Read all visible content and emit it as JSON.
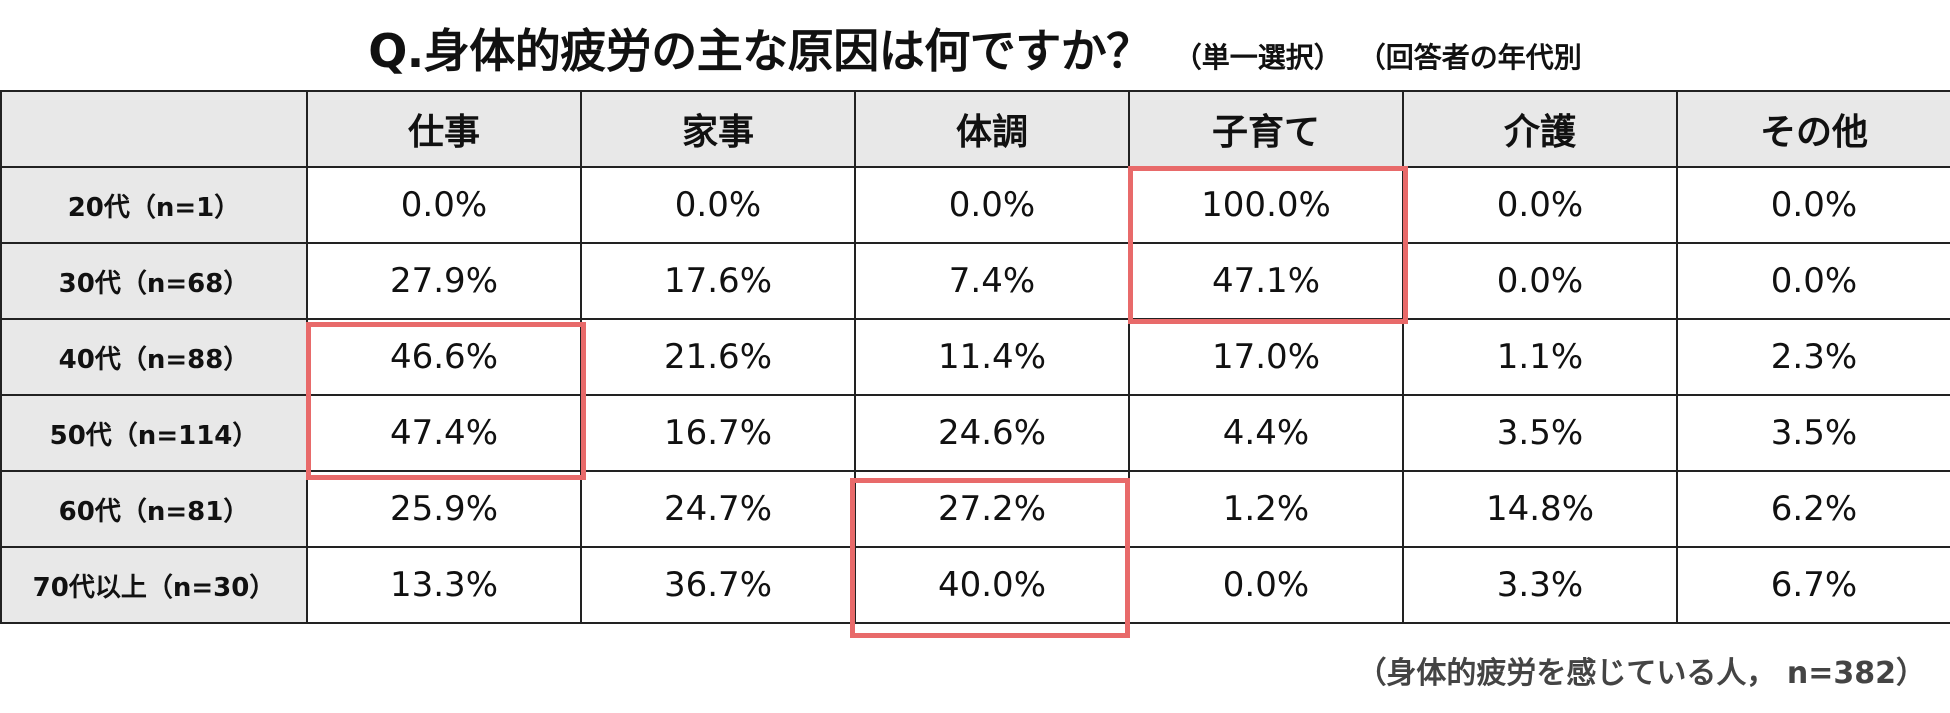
{
  "title": {
    "main": "Q.身体的疲労の主な原因は何ですか？",
    "sub": "（単一選択）",
    "sub2": "（回答者の年代別"
  },
  "chart_data": {
    "type": "table",
    "columns": [
      "仕事",
      "家事",
      "体調",
      "子育て",
      "介護",
      "その他"
    ],
    "rows": [
      {
        "label": "20代（n=1）",
        "values": [
          "0.0%",
          "0.0%",
          "0.0%",
          "100.0%",
          "0.0%",
          "0.0%"
        ]
      },
      {
        "label": "30代（n=68）",
        "values": [
          "27.9%",
          "17.6%",
          "7.4%",
          "47.1%",
          "0.0%",
          "0.0%"
        ]
      },
      {
        "label": "40代（n=88）",
        "values": [
          "46.6%",
          "21.6%",
          "11.4%",
          "17.0%",
          "1.1%",
          "2.3%"
        ]
      },
      {
        "label": "50代（n=114）",
        "values": [
          "47.4%",
          "16.7%",
          "24.6%",
          "4.4%",
          "3.5%",
          "3.5%"
        ]
      },
      {
        "label": "60代（n=81）",
        "values": [
          "25.9%",
          "24.7%",
          "27.2%",
          "1.2%",
          "14.8%",
          "6.2%"
        ]
      },
      {
        "label": "70代以上（n=30）",
        "values": [
          "13.3%",
          "36.7%",
          "40.0%",
          "0.0%",
          "3.3%",
          "6.7%"
        ]
      }
    ],
    "highlight_color": "#e86a6a"
  },
  "footnote": "（身体的疲労を感じている人， n=382）"
}
